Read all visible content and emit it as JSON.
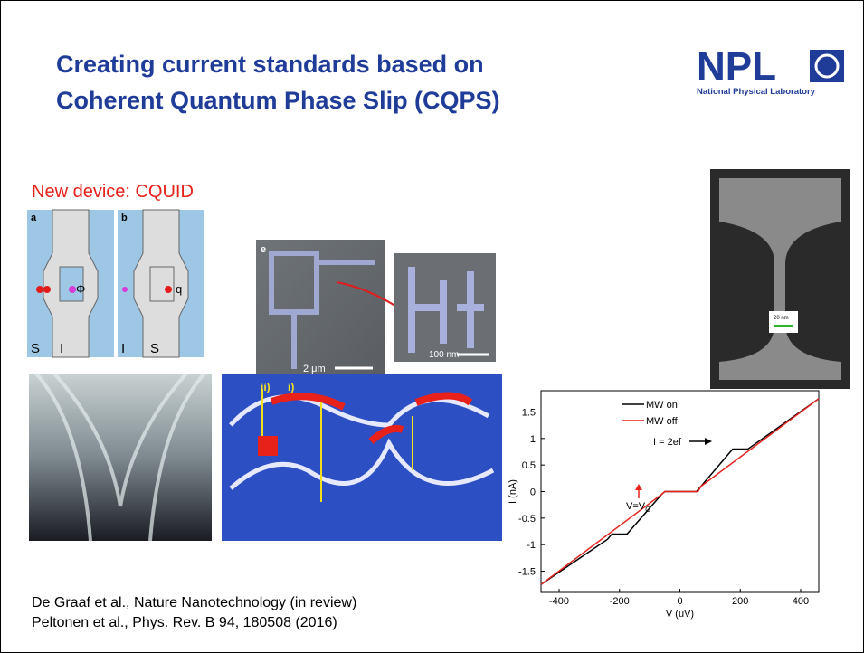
{
  "header": {
    "title_lines": [
      "Creating current standards based on",
      "Coherent Quantum Phase Slip (CQPS)"
    ],
    "logo": {
      "text": "NPL",
      "subtitle": "National Physical Laboratory"
    }
  },
  "subtitle": "New device: CQUID",
  "figures": {
    "panel_a": {
      "letter": "a",
      "labels": [
        "S",
        "I"
      ],
      "symbol": "Φ"
    },
    "panel_b": {
      "letter": "b",
      "labels": [
        "I",
        "S"
      ],
      "symbol": "q"
    },
    "sem_e": {
      "letter": "e",
      "scale": "2 μm"
    },
    "sem_zoom": {
      "scale": "100 nm"
    },
    "map": {
      "labels": [
        "ii)",
        "i)"
      ]
    },
    "wire": {
      "scale": "20 nm"
    }
  },
  "plot": {
    "type": "line",
    "x_label": "V (uV)",
    "y_label": "I (nA)",
    "xlim": [
      -460,
      460
    ],
    "ylim": [
      -1.9,
      1.9
    ],
    "xticks": [
      -400,
      -200,
      0,
      200,
      400
    ],
    "yticks": [
      -1.5,
      -1,
      -0.5,
      0,
      0.5,
      1,
      1.5
    ],
    "series": [
      {
        "name": "MW on",
        "color": "#000000",
        "x": [
          -460,
          -240,
          -225,
          -175,
          -60,
          -50,
          55,
          70,
          160,
          175,
          225,
          460
        ],
        "values": [
          -1.75,
          -0.9,
          -0.8,
          -0.8,
          -0.05,
          0,
          0,
          0.1,
          0.7,
          0.8,
          0.8,
          1.75
        ]
      },
      {
        "name": "MW off",
        "color": "#e8221b",
        "x": [
          -460,
          -60,
          -50,
          60,
          70,
          460
        ],
        "values": [
          -1.75,
          -0.05,
          0,
          0,
          0.1,
          1.75
        ]
      }
    ],
    "annotations": {
      "step": "I = 2ef",
      "vc": {
        "main": "V=V",
        "sub": "C"
      }
    }
  },
  "references": [
    "De Graaf et al., Nature Nanotechnology (in review)",
    "Peltonen et al., Phys. Rev. B 94, 180508 (2016)"
  ]
}
